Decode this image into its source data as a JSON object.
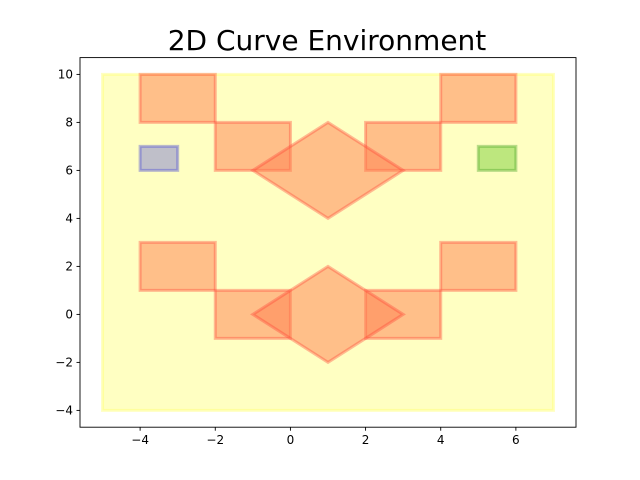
{
  "chart_data": {
    "type": "area",
    "title": "2D Curve Environment",
    "xlabel": "",
    "ylabel": "",
    "xlim": [
      -5.6,
      7.6
    ],
    "ylim": [
      -4.7,
      10.7
    ],
    "grid": false,
    "x_ticks": [
      -4,
      -2,
      0,
      2,
      4,
      6
    ],
    "y_ticks": [
      -4,
      -2,
      0,
      2,
      4,
      6,
      8,
      10
    ],
    "x_tick_labels": [
      "−4",
      "−2",
      "0",
      "2",
      "4",
      "6"
    ],
    "y_tick_labels": [
      "−4",
      "−2",
      "0",
      "2",
      "4",
      "6",
      "8",
      "10"
    ],
    "colors": {
      "environment_fill": "#ffff66",
      "obstacle_fill": "#ff7f50",
      "obstacle_edge": "#ff3b30",
      "start_fill": "#8080d0",
      "start_edge": "#3a3ad8",
      "goal_fill": "#7ccf3a",
      "goal_edge": "#3a9a1a"
    },
    "regions": [
      {
        "name": "environment",
        "kind": "boundary",
        "points": [
          [
            -5,
            -4
          ],
          [
            7,
            -4
          ],
          [
            7,
            10
          ],
          [
            -5,
            10
          ]
        ]
      },
      {
        "name": "obstacle-1",
        "kind": "obstacle",
        "points": [
          [
            -4,
            8
          ],
          [
            -2,
            8
          ],
          [
            -2,
            10
          ],
          [
            -4,
            10
          ]
        ]
      },
      {
        "name": "obstacle-2",
        "kind": "obstacle",
        "points": [
          [
            -2,
            6
          ],
          [
            0,
            6
          ],
          [
            0,
            8
          ],
          [
            -2,
            8
          ]
        ]
      },
      {
        "name": "obstacle-3",
        "kind": "obstacle",
        "points": [
          [
            2,
            6
          ],
          [
            4,
            6
          ],
          [
            4,
            8
          ],
          [
            2,
            8
          ]
        ]
      },
      {
        "name": "obstacle-4",
        "kind": "obstacle",
        "points": [
          [
            4,
            8
          ],
          [
            6,
            8
          ],
          [
            6,
            10
          ],
          [
            4,
            10
          ]
        ]
      },
      {
        "name": "obstacle-5",
        "kind": "obstacle",
        "points": [
          [
            -1,
            6
          ],
          [
            1,
            8
          ],
          [
            3,
            6
          ],
          [
            1,
            4
          ]
        ]
      },
      {
        "name": "obstacle-6",
        "kind": "obstacle",
        "points": [
          [
            -4,
            1
          ],
          [
            -2,
            1
          ],
          [
            -2,
            3
          ],
          [
            -4,
            3
          ]
        ]
      },
      {
        "name": "obstacle-7",
        "kind": "obstacle",
        "points": [
          [
            -2,
            -1
          ],
          [
            0,
            -1
          ],
          [
            0,
            1
          ],
          [
            -2,
            1
          ]
        ]
      },
      {
        "name": "obstacle-8",
        "kind": "obstacle",
        "points": [
          [
            2,
            -1
          ],
          [
            4,
            -1
          ],
          [
            4,
            1
          ],
          [
            2,
            1
          ]
        ]
      },
      {
        "name": "obstacle-9",
        "kind": "obstacle",
        "points": [
          [
            4,
            1
          ],
          [
            6,
            1
          ],
          [
            6,
            3
          ],
          [
            4,
            3
          ]
        ]
      },
      {
        "name": "obstacle-10",
        "kind": "obstacle",
        "points": [
          [
            -1,
            0
          ],
          [
            1,
            2
          ],
          [
            3,
            0
          ],
          [
            1,
            -2
          ]
        ]
      },
      {
        "name": "start-region",
        "kind": "start",
        "points": [
          [
            -4,
            6
          ],
          [
            -3,
            6
          ],
          [
            -3,
            7
          ],
          [
            -4,
            7
          ]
        ]
      },
      {
        "name": "goal-region",
        "kind": "goal",
        "points": [
          [
            5,
            6
          ],
          [
            6,
            6
          ],
          [
            6,
            7
          ],
          [
            5,
            7
          ]
        ]
      }
    ]
  }
}
